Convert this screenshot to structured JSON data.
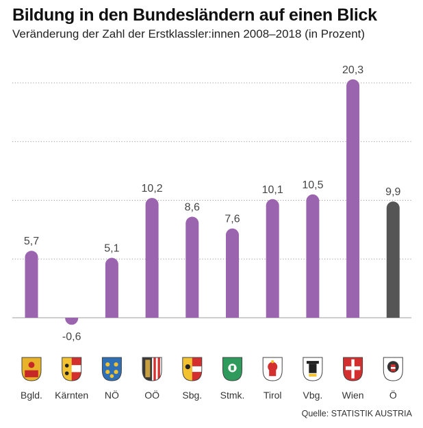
{
  "chart_data": {
    "type": "bar",
    "title": "Bildung in den Bundesländern auf einen Blick",
    "subtitle": "Veränderung der Zahl der Erstklassler:innen 2008–2018 (in Prozent)",
    "xlabel": "",
    "ylabel": "",
    "ylim": [
      -2,
      20.5
    ],
    "gridlines": [
      5,
      10,
      15,
      20
    ],
    "categories": [
      "Bgld.",
      "Kärnten",
      "NÖ",
      "OÖ",
      "Sbg.",
      "Stmk.",
      "Tirol",
      "Vbg.",
      "Wien",
      "Ö"
    ],
    "value_labels": [
      "5,7",
      "-0,6",
      "5,1",
      "10,2",
      "8,6",
      "7,6",
      "10,1",
      "10,5",
      "20,3",
      "9,9"
    ],
    "values": [
      5.7,
      -0.6,
      5.1,
      10.2,
      8.6,
      7.6,
      10.1,
      10.5,
      20.3,
      9.9
    ],
    "highlight_category": "Ö",
    "coat_of_arms_icons": [
      "burgenland-coat-of-arms-icon",
      "kaernten-coat-of-arms-icon",
      "niederoesterreich-coat-of-arms-icon",
      "oberoesterreich-coat-of-arms-icon",
      "salzburg-coat-of-arms-icon",
      "steiermark-coat-of-arms-icon",
      "tirol-coat-of-arms-icon",
      "vorarlberg-coat-of-arms-icon",
      "wien-coat-of-arms-icon",
      "oesterreich-coat-of-arms-icon"
    ],
    "colors": {
      "bar": "#9B64AE",
      "highlight_bar": "#555555",
      "grid": "#9a9a9a",
      "baseline": "#bdbdbd",
      "label": "#444444"
    }
  },
  "source": "Quelle: STATISTIK AUSTRIA"
}
